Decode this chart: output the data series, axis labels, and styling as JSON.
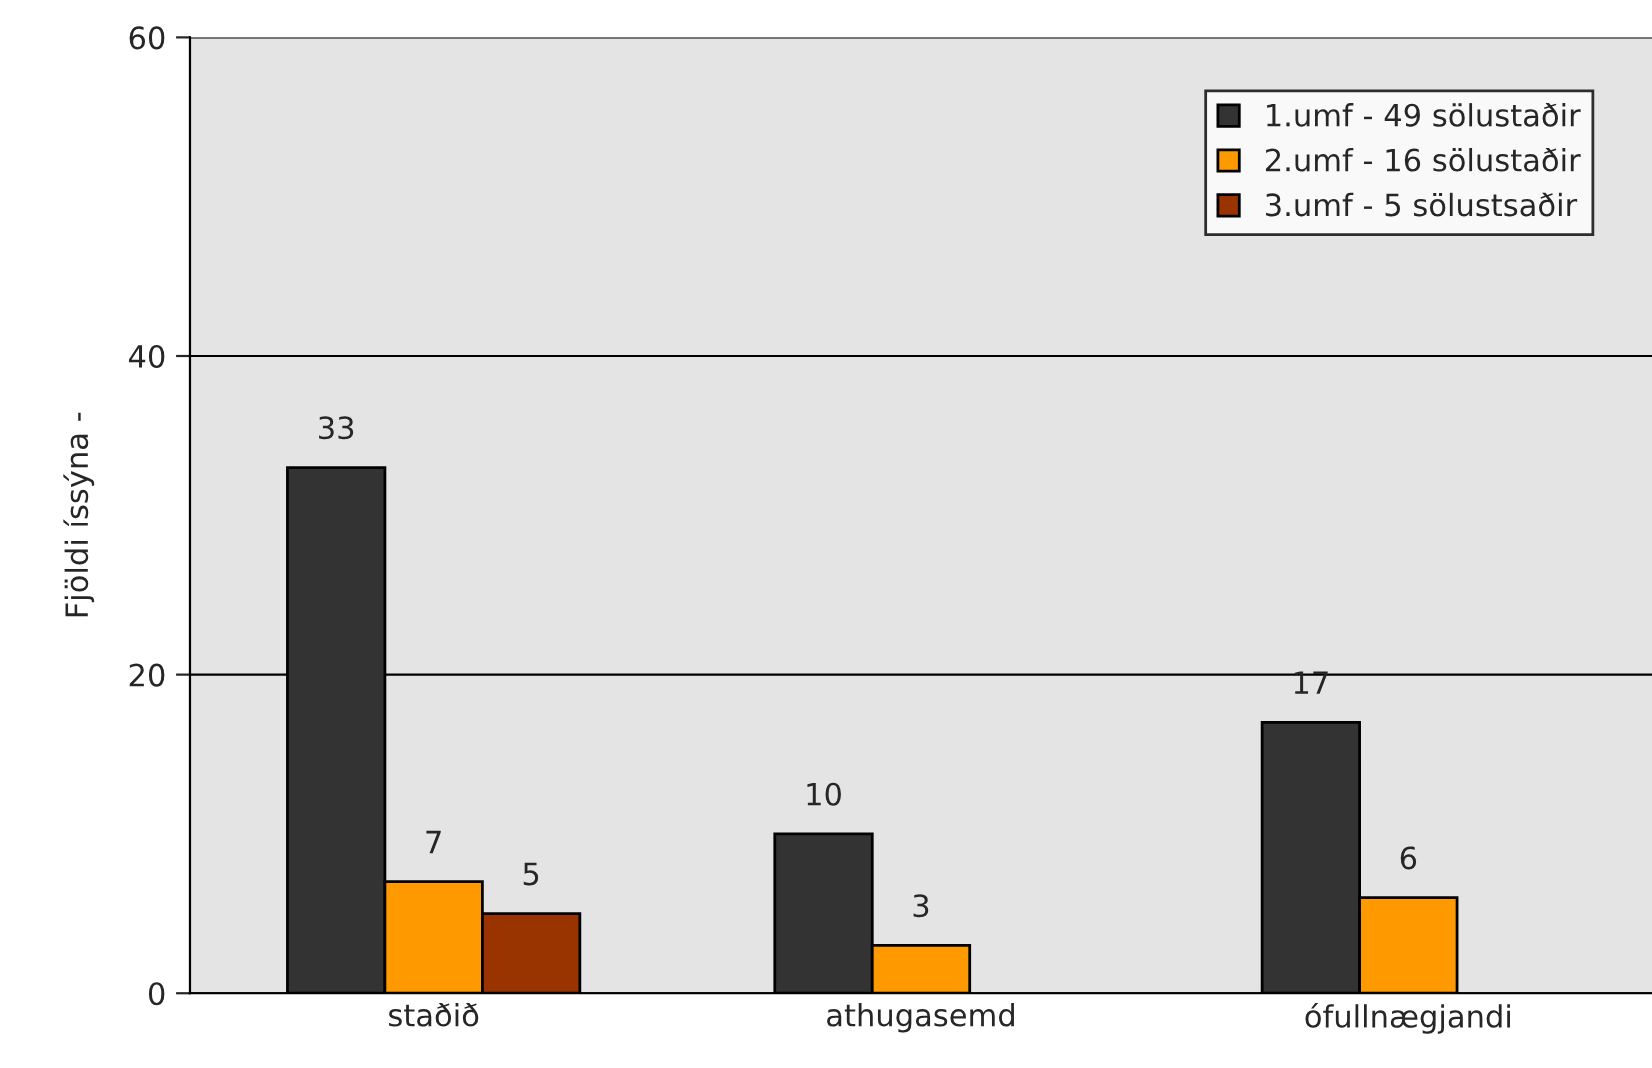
{
  "chart_data": {
    "type": "bar",
    "ylabel": "Fjöldi íssýna -",
    "categories": [
      "staðið",
      "athugasemd",
      "ófullnægjandi"
    ],
    "series": [
      {
        "name": "1.umf - 49 sölustaðir",
        "color": "#333333",
        "values": [
          33,
          10,
          17
        ]
      },
      {
        "name": "2.umf - 16 sölustaðir",
        "color": "#ff9900",
        "values": [
          7,
          3,
          6
        ]
      },
      {
        "name": "3.umf - 5 sölustsaðir",
        "color": "#993300",
        "values": [
          5,
          null,
          null
        ]
      }
    ],
    "ylim": [
      0,
      60
    ],
    "yticks": [
      0,
      20,
      40,
      60
    ],
    "grid": "y",
    "legend": "top right",
    "data_labels": true
  }
}
